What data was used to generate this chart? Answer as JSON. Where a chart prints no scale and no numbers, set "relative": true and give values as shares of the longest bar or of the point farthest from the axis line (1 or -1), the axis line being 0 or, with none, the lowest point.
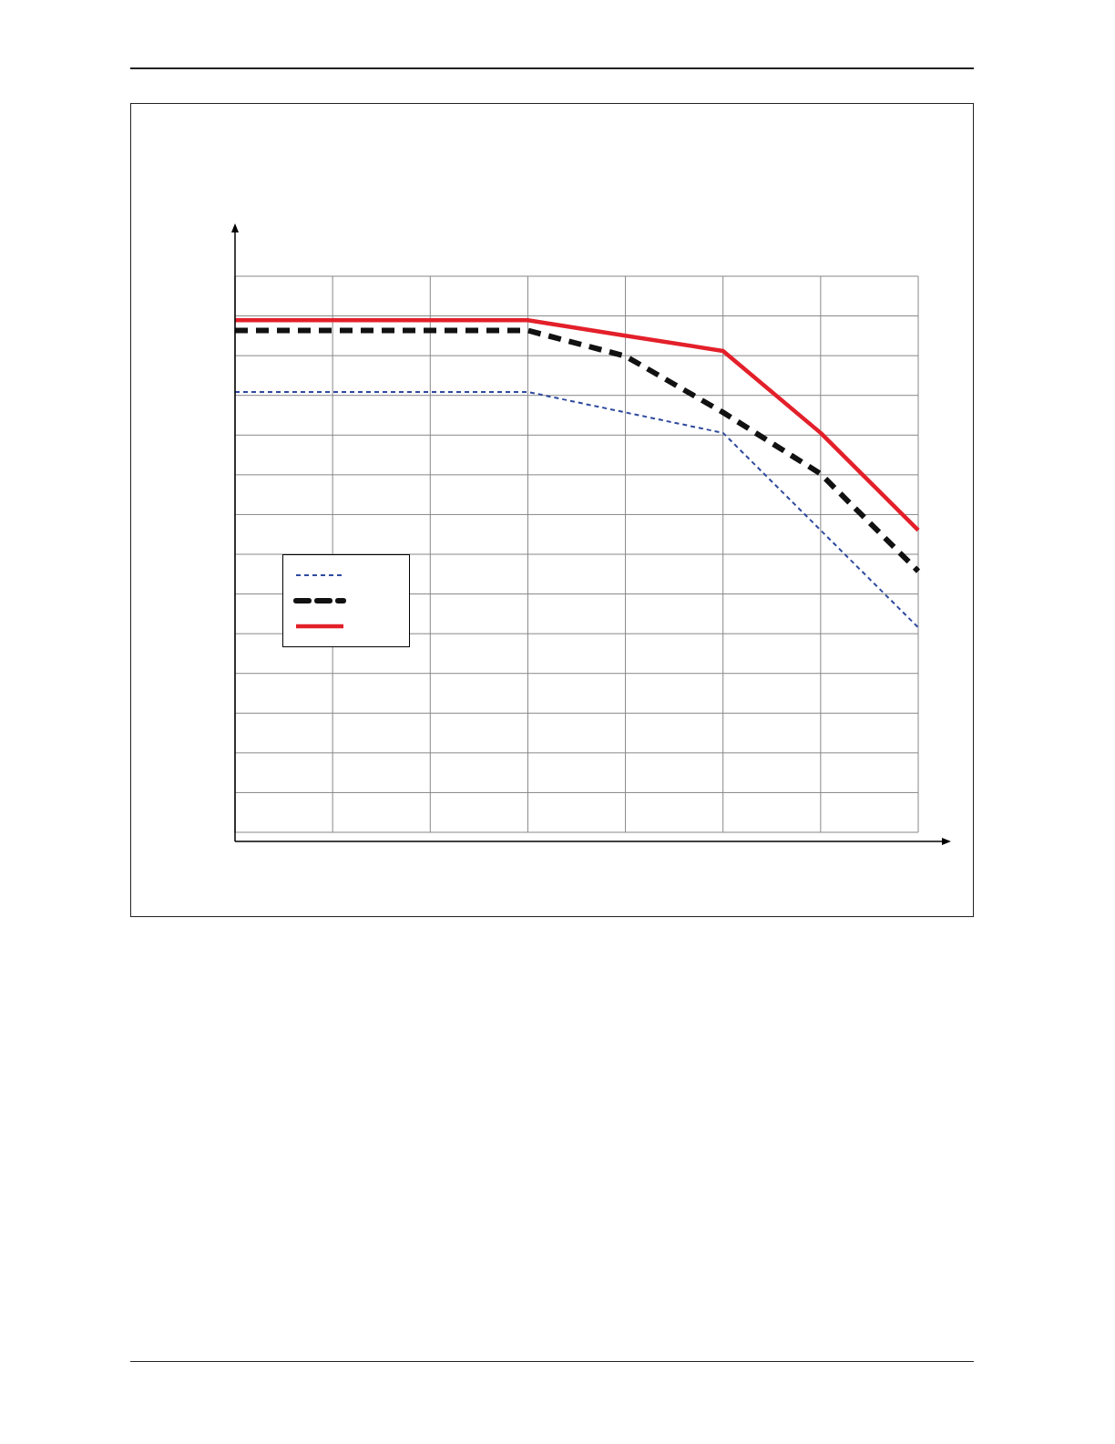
{
  "chart_data": {
    "type": "line",
    "relative": true,
    "categories": [
      null,
      null,
      null,
      null,
      null,
      null,
      null,
      null
    ],
    "grid": true,
    "series": [
      {
        "color": "#2e4a9e",
        "line_style": "dotted",
        "values": [
          0.86,
          0.86,
          0.86,
          0.86,
          0.82,
          0.78,
          0.59,
          0.4
        ]
      },
      {
        "color": "#111111",
        "line_style": "dashed",
        "values": [
          0.98,
          0.98,
          0.98,
          0.98,
          0.93,
          0.82,
          0.7,
          0.51
        ]
      },
      {
        "color": "#e3202a",
        "line_style": "solid",
        "values": [
          1,
          1,
          1,
          1,
          0.97,
          0.94,
          0.78,
          0.59
        ]
      }
    ]
  }
}
